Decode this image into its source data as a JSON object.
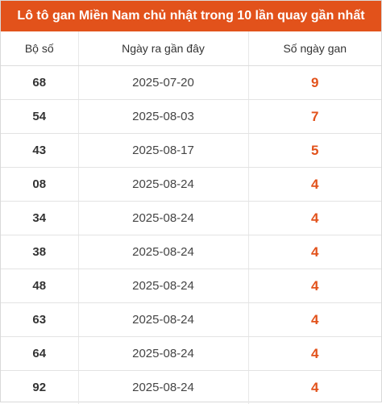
{
  "title": "Lô tô gan Miền Nam chủ nhật trong 10 lần quay gần nhất",
  "colors": {
    "accent": "#e2521b",
    "text": "#333333"
  },
  "table": {
    "headers": [
      "Bộ số",
      "Ngày ra gần đây",
      "Số ngày gan"
    ],
    "rows": [
      {
        "number": "68",
        "date": "2025-07-20",
        "days": "9"
      },
      {
        "number": "54",
        "date": "2025-08-03",
        "days": "7"
      },
      {
        "number": "43",
        "date": "2025-08-17",
        "days": "5"
      },
      {
        "number": "08",
        "date": "2025-08-24",
        "days": "4"
      },
      {
        "number": "34",
        "date": "2025-08-24",
        "days": "4"
      },
      {
        "number": "38",
        "date": "2025-08-24",
        "days": "4"
      },
      {
        "number": "48",
        "date": "2025-08-24",
        "days": "4"
      },
      {
        "number": "63",
        "date": "2025-08-24",
        "days": "4"
      },
      {
        "number": "64",
        "date": "2025-08-24",
        "days": "4"
      },
      {
        "number": "92",
        "date": "2025-08-24",
        "days": "4"
      }
    ]
  }
}
